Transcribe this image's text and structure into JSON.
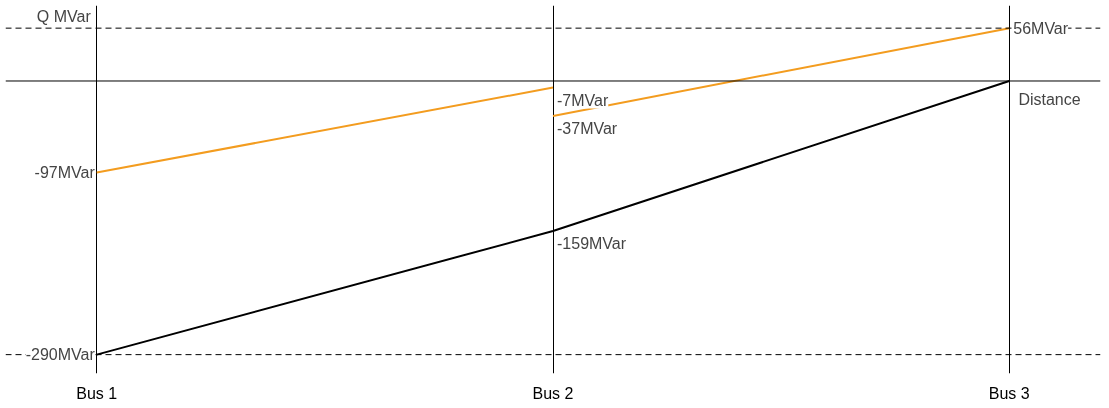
{
  "chart_data": {
    "type": "line",
    "xlabel": "Distance",
    "ylabel": "Q MVar",
    "categories": [
      "Bus 1",
      "Bus 2",
      "Bus 3"
    ],
    "series": [
      {
        "color": "#000000",
        "values": [
          -290,
          -159,
          0
        ],
        "value_labels": [
          "-290MVar",
          "-159MVar",
          null
        ]
      },
      {
        "color": "#f39c1f",
        "values": [
          -97,
          -7,
          null
        ],
        "value_labels": [
          "-97MVar",
          "-7MVar",
          null
        ]
      },
      {
        "color": "#f39c1f",
        "values": [
          null,
          -37,
          56
        ],
        "value_labels": [
          null,
          "-37MVar",
          "56MVar"
        ]
      }
    ],
    "ylim": [
      -310,
      80
    ],
    "grid": "x",
    "tick_labels": "x",
    "line_style": "solid",
    "marker": "none",
    "ref_lines": [
      {
        "axis": "y",
        "value": 0,
        "line_style": "solid",
        "color": "#000000"
      },
      {
        "axis": "y",
        "value": 56,
        "line_style": "dashed",
        "color": "#000000"
      },
      {
        "axis": "y",
        "value": -290,
        "line_style": "dashed",
        "color": "#000000"
      }
    ]
  }
}
